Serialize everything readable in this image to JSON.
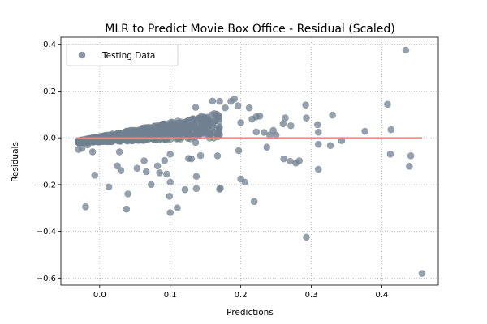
{
  "chart_data": {
    "type": "scatter",
    "title": "MLR to Predict Movie Box Office - Residual (Scaled)",
    "xlabel": "Predictions",
    "ylabel": "Residuals",
    "xlim": [
      -0.055,
      0.48
    ],
    "ylim": [
      -0.63,
      0.43
    ],
    "xticks": [
      0.0,
      0.1,
      0.2,
      0.3,
      0.4
    ],
    "xtick_labels": [
      "0.0",
      "0.1",
      "0.2",
      "0.3",
      "0.4"
    ],
    "yticks": [
      -0.6,
      -0.4,
      -0.2,
      0.0,
      0.2,
      0.4
    ],
    "ytick_labels": [
      "−0.6",
      "−0.4",
      "−0.2",
      "0.0",
      "0.2",
      "0.4"
    ],
    "grid": true,
    "legend_position": "upper-left",
    "series": [
      {
        "name": "Testing Data",
        "color": "#708090",
        "points": [
          [
            0.434,
            0.375
          ],
          [
            0.457,
            -0.58
          ],
          [
            0.293,
            -0.425
          ],
          [
            0.412,
            -0.07
          ],
          [
            0.441,
            -0.077
          ],
          [
            0.439,
            -0.122
          ],
          [
            0.408,
            0.143
          ],
          [
            0.413,
            0.035
          ],
          [
            0.376,
            0.028
          ],
          [
            0.33,
            0.097
          ],
          [
            0.343,
            -0.012
          ],
          [
            0.327,
            -0.033
          ],
          [
            0.31,
            -0.028
          ],
          [
            0.309,
            0.056
          ],
          [
            0.31,
            0.024
          ],
          [
            0.31,
            -0.135
          ],
          [
            0.292,
            0.14
          ],
          [
            0.293,
            0.085
          ],
          [
            0.263,
            0.085
          ],
          [
            0.26,
            0.06
          ],
          [
            0.271,
            0.052
          ],
          [
            0.261,
            -0.09
          ],
          [
            0.27,
            -0.1
          ],
          [
            0.278,
            -0.108
          ],
          [
            0.283,
            -0.098
          ],
          [
            0.246,
            0.032
          ],
          [
            0.25,
            0.012
          ],
          [
            0.233,
            0.023
          ],
          [
            0.241,
            0.012
          ],
          [
            0.237,
            -0.04
          ],
          [
            0.227,
            0.093
          ],
          [
            0.222,
            0.09
          ],
          [
            0.222,
            0.025
          ],
          [
            0.212,
            0.128
          ],
          [
            0.216,
            0.08
          ],
          [
            0.219,
            -0.272
          ],
          [
            0.2,
            -0.176
          ],
          [
            0.206,
            -0.19
          ],
          [
            0.196,
            0.137
          ],
          [
            0.2,
            0.065
          ],
          [
            0.191,
            0.166
          ],
          [
            0.186,
            0.156
          ],
          [
            0.197,
            -0.055
          ],
          [
            0.178,
            0.128
          ],
          [
            0.17,
            0.156
          ],
          [
            0.171,
            -0.215
          ],
          [
            0.17,
            -0.22
          ],
          [
            0.167,
            -0.077
          ],
          [
            0.16,
            0.157
          ],
          [
            0.155,
            0.073
          ],
          [
            0.143,
            -0.076
          ],
          [
            0.147,
            0.019
          ],
          [
            0.136,
            -0.02
          ],
          [
            0.136,
            0.13
          ],
          [
            0.137,
            -0.217
          ],
          [
            0.13,
            -0.09
          ],
          [
            0.137,
            -0.165
          ],
          [
            0.126,
            -0.088
          ],
          [
            0.127,
            0.056
          ],
          [
            0.125,
            0.017
          ],
          [
            0.121,
            -0.222
          ],
          [
            0.11,
            -0.3
          ],
          [
            0.1,
            -0.32
          ],
          [
            0.099,
            -0.25
          ],
          [
            0.1,
            -0.07
          ],
          [
            0.095,
            -0.155
          ],
          [
            0.1,
            -0.19
          ],
          [
            0.092,
            -0.097
          ],
          [
            0.085,
            -0.15
          ],
          [
            0.073,
            -0.2
          ],
          [
            0.082,
            -0.12
          ],
          [
            0.066,
            -0.145
          ],
          [
            0.063,
            -0.098
          ],
          [
            0.053,
            -0.13
          ],
          [
            0.04,
            -0.24
          ],
          [
            0.038,
            -0.305
          ],
          [
            0.03,
            -0.14
          ],
          [
            0.025,
            -0.12
          ],
          [
            0.028,
            -0.06
          ],
          [
            0.013,
            -0.21
          ],
          [
            -0.02,
            -0.295
          ],
          [
            -0.007,
            -0.16
          ],
          [
            -0.01,
            -0.06
          ],
          [
            -0.025,
            -0.045
          ],
          [
            -0.017,
            -0.03
          ],
          [
            -0.03,
            -0.05
          ]
        ]
      }
    ],
    "zero_line": {
      "y": 0.0,
      "x_range": [
        -0.033,
        0.457
      ],
      "color": "#fa8072"
    }
  }
}
